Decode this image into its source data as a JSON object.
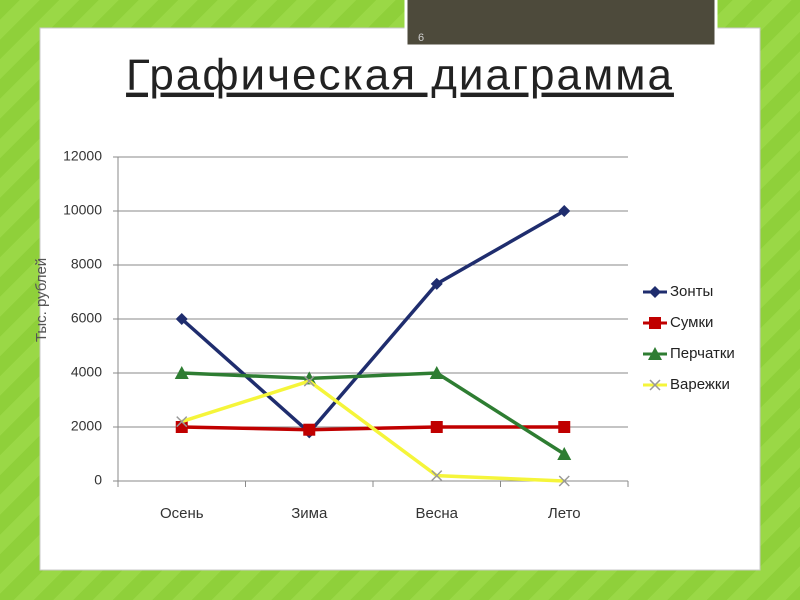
{
  "slide": {
    "number": "6"
  },
  "chart_data": {
    "type": "line",
    "title": "Графическая диаграмма",
    "ylabel": "Тыс. рублей",
    "categories": [
      "Осень",
      "Зима",
      "Весна",
      "Лето"
    ],
    "series": [
      {
        "name": "Зонты",
        "color": "#1f2d6e",
        "marker": "diamond",
        "values": [
          6000,
          1800,
          7300,
          10000
        ]
      },
      {
        "name": "Сумки",
        "color": "#c00000",
        "marker": "square",
        "values": [
          2000,
          1900,
          2000,
          2000
        ]
      },
      {
        "name": "Перчатки",
        "color": "#2e7d32",
        "marker": "triangle",
        "values": [
          4000,
          3800,
          4000,
          1000
        ]
      },
      {
        "name": "Варежки",
        "color": "#f5f53a",
        "marker": "x",
        "values": [
          2200,
          3700,
          200,
          0
        ]
      }
    ],
    "ylim": [
      0,
      12000
    ],
    "yticks": [
      0,
      2000,
      4000,
      6000,
      8000,
      10000,
      12000
    ],
    "grid": true,
    "legend": "right"
  }
}
